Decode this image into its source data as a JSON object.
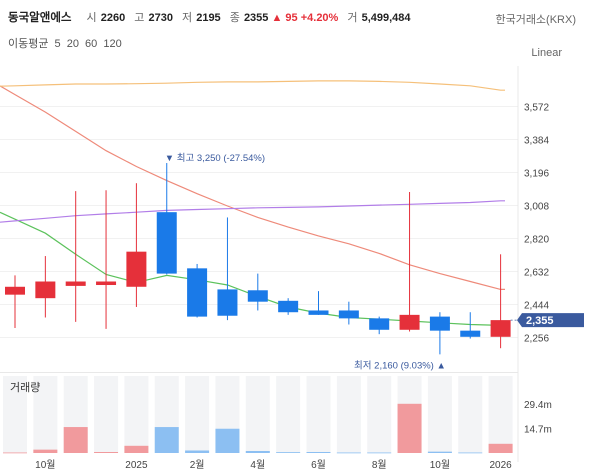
{
  "header": {
    "stock_name": "동국알앤에스",
    "open_label": "시",
    "open": "2260",
    "high_label": "고",
    "high": "2730",
    "low_label": "저",
    "low": "2195",
    "close_label": "종",
    "close": "2355",
    "change": "▲ 95 +4.20%",
    "volume_label": "거",
    "volume": "5,499,484",
    "exchange": "한국거래소(KRX)",
    "scale_mode": "Linear"
  },
  "ma_legend": {
    "label": "이동평균",
    "periods": [
      "5",
      "20",
      "60",
      "120"
    ]
  },
  "colors": {
    "up": "#e5303a",
    "down": "#1a7ae8",
    "ma5": "#5cc25c",
    "ma20": "#ee8a7a",
    "ma60": "#f5c07a",
    "ma120": "#b27ee8",
    "price_badge": "#3a5a9e"
  },
  "chart_data": {
    "type": "candlestick",
    "interval": "monthly",
    "price_axis": {
      "ticks": [
        2256,
        2444,
        2632,
        2820,
        3008,
        3196,
        3384,
        3572
      ],
      "range": [
        2160,
        3720
      ]
    },
    "time_axis": {
      "labels": [
        {
          "label": "10월",
          "index": 1
        },
        {
          "label": "2025",
          "index": 4
        },
        {
          "label": "2월",
          "index": 6
        },
        {
          "label": "4월",
          "index": 8
        },
        {
          "label": "6월",
          "index": 10
        },
        {
          "label": "8월",
          "index": 12
        },
        {
          "label": "10월",
          "index": 14
        },
        {
          "label": "2026",
          "index": 16
        }
      ]
    },
    "candles": [
      {
        "open": 2500,
        "high": 2610,
        "low": 2310,
        "close": 2545
      },
      {
        "open": 2480,
        "high": 2720,
        "low": 2370,
        "close": 2575
      },
      {
        "open": 2550,
        "high": 3090,
        "low": 2345,
        "close": 2575
      },
      {
        "open": 2555,
        "high": 3095,
        "low": 2305,
        "close": 2575
      },
      {
        "open": 2545,
        "high": 3135,
        "low": 2430,
        "close": 2745
      },
      {
        "open": 2970,
        "high": 3250,
        "low": 2615,
        "close": 2620
      },
      {
        "open": 2650,
        "high": 2675,
        "low": 2370,
        "close": 2375
      },
      {
        "open": 2530,
        "high": 2940,
        "low": 2355,
        "close": 2380
      },
      {
        "open": 2525,
        "high": 2620,
        "low": 2410,
        "close": 2460
      },
      {
        "open": 2465,
        "high": 2480,
        "low": 2385,
        "close": 2400
      },
      {
        "open": 2410,
        "high": 2520,
        "low": 2385,
        "close": 2385
      },
      {
        "open": 2410,
        "high": 2460,
        "low": 2330,
        "close": 2365
      },
      {
        "open": 2365,
        "high": 2375,
        "low": 2275,
        "close": 2300
      },
      {
        "open": 2300,
        "high": 3085,
        "low": 2290,
        "close": 2385
      },
      {
        "open": 2375,
        "high": 2400,
        "low": 2160,
        "close": 2295
      },
      {
        "open": 2295,
        "high": 2400,
        "low": 2250,
        "close": 2260
      },
      {
        "open": 2260,
        "high": 2730,
        "low": 2195,
        "close": 2355
      }
    ],
    "moving_averages": [
      {
        "period": "5",
        "values": [
          2930,
          2850,
          2730,
          2615,
          2570,
          2610,
          2585,
          2555,
          2490,
          2430,
          2395,
          2370,
          2360,
          2350,
          2340,
          2330,
          2325
        ]
      },
      {
        "period": "20",
        "values": [
          3640,
          3540,
          3430,
          3320,
          3230,
          3150,
          3075,
          3005,
          2940,
          2885,
          2835,
          2790,
          2735,
          2670,
          2620,
          2575,
          2530
        ]
      },
      {
        "period": "60",
        "values": [
          3690,
          3695,
          3700,
          3700,
          3702,
          3705,
          3710,
          3712,
          3712,
          3715,
          3718,
          3718,
          3715,
          3710,
          3700,
          3690,
          3665
        ]
      },
      {
        "period": "120",
        "values": [
          2920,
          2935,
          2950,
          2960,
          2970,
          2980,
          2985,
          2990,
          2995,
          2997,
          3000,
          3005,
          3010,
          3015,
          3020,
          3025,
          3035
        ]
      }
    ],
    "high_annotation": {
      "text": "▼ 최고 3,250 (-27.54%)",
      "index": 5,
      "price": 3250
    },
    "low_annotation": {
      "text": "최저 2,160 (9.03%) ▲",
      "index": 14,
      "price": 2160
    },
    "last_price": "2,355",
    "volume_panel": {
      "title": "거래량",
      "ticks": [
        {
          "label": "29.4m",
          "value": 29.4
        },
        {
          "label": "14.7m",
          "value": 14.7
        }
      ],
      "max": 46,
      "values": [
        0.3,
        2.0,
        15.5,
        0.6,
        4.3,
        15.5,
        1.5,
        14.5,
        1.2,
        0.5,
        0.6,
        0.3,
        0.3,
        29.4,
        0.8,
        0.3,
        5.5
      ]
    }
  }
}
